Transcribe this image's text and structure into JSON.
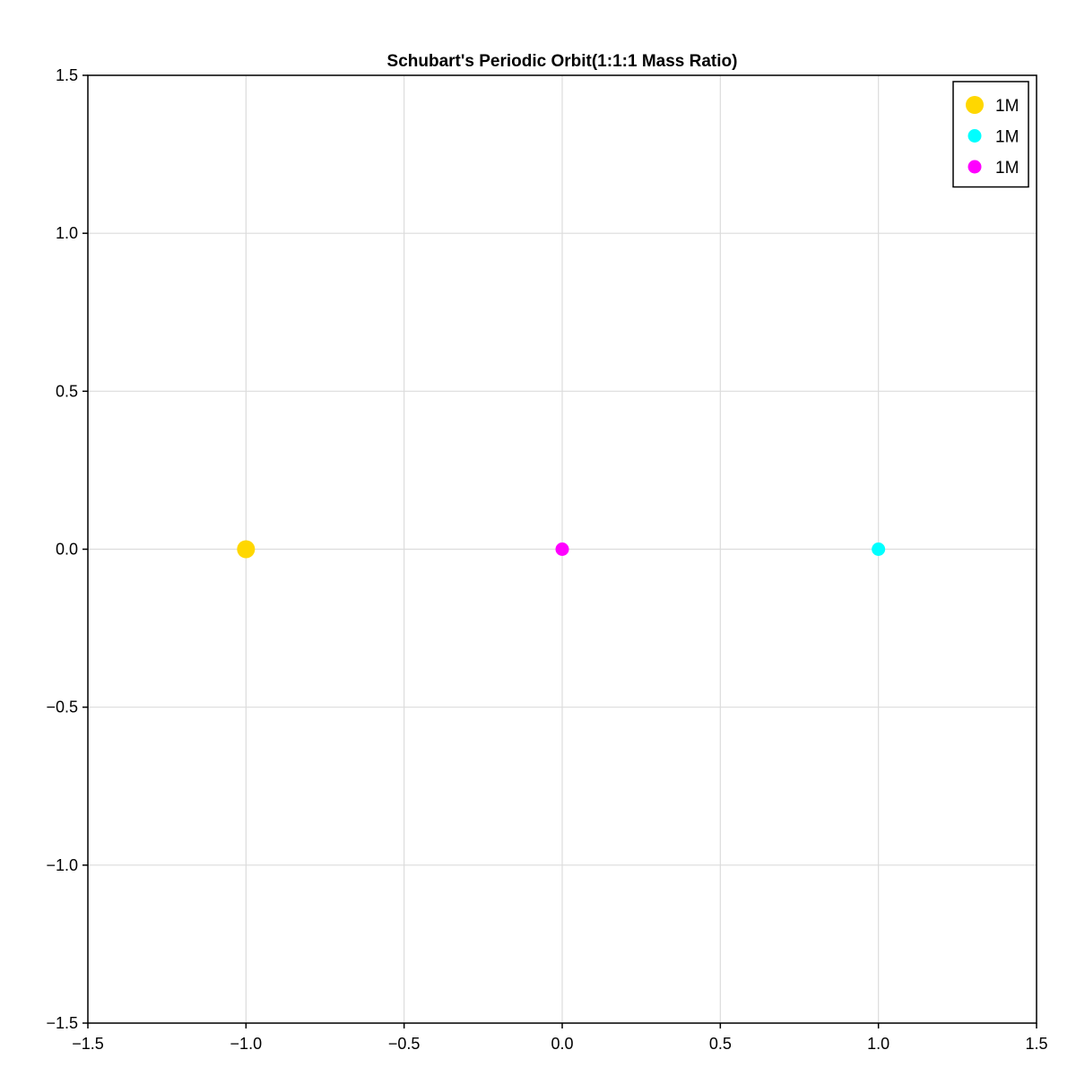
{
  "chart_data": {
    "type": "scatter",
    "title": "Schubart's Periodic Orbit(1:1:1 Mass Ratio)",
    "xlabel": "",
    "ylabel": "",
    "xlim": [
      -1.5,
      1.5
    ],
    "ylim": [
      -1.5,
      1.5
    ],
    "x_ticks": [
      -1.5,
      -1.0,
      -0.5,
      0.0,
      0.5,
      1.0,
      1.5
    ],
    "y_ticks": [
      -1.5,
      -1.0,
      -0.5,
      0.0,
      0.5,
      1.0,
      1.5
    ],
    "x_tick_labels": [
      "−1.5",
      "−1.0",
      "−0.5",
      "0.0",
      "0.5",
      "1.0",
      "1.5"
    ],
    "y_tick_labels": [
      "−1.5",
      "−1.0",
      "−0.5",
      "0.0",
      "0.5",
      "1.0",
      "1.5"
    ],
    "grid": true,
    "legend_position": "top-right",
    "series": [
      {
        "name": "1M",
        "color": "#FFD700",
        "size": "large",
        "points": [
          {
            "x": -1.0,
            "y": 0.0
          }
        ]
      },
      {
        "name": "1M",
        "color": "#00FFFF",
        "size": "medium",
        "points": [
          {
            "x": 1.0,
            "y": 0.0
          }
        ]
      },
      {
        "name": "1M",
        "color": "#FF00FF",
        "size": "medium",
        "points": [
          {
            "x": 0.0,
            "y": 0.0
          }
        ]
      }
    ]
  }
}
